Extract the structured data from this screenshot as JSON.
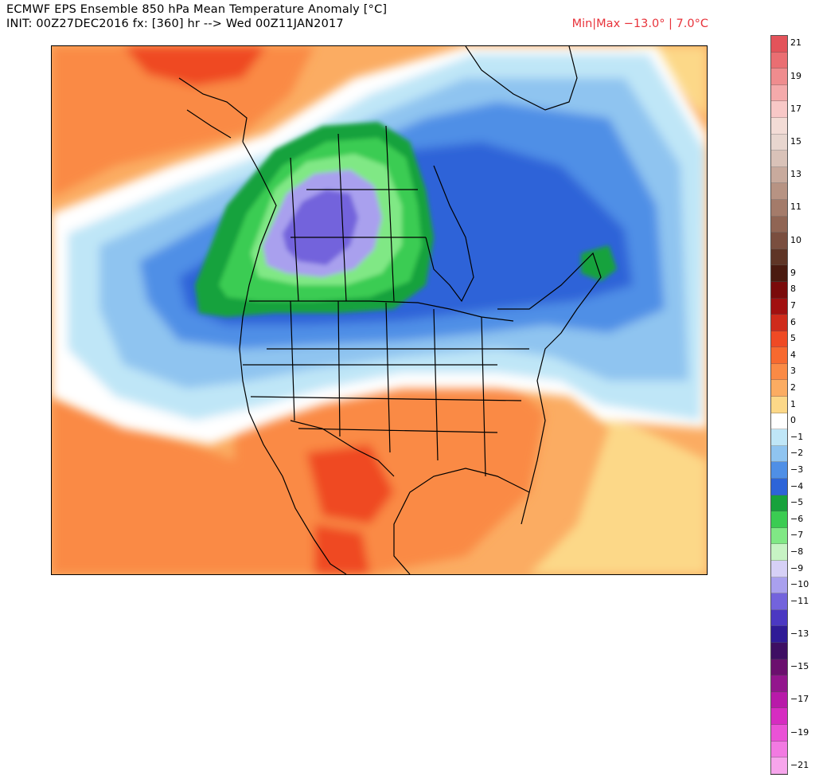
{
  "header": {
    "title": "ECMWF EPS Ensemble 850 hPa Mean Temperature Anomaly [°C]",
    "init": "INIT: 00Z27DEC2016 fx: [360] hr --> Wed 00Z11JAN2017",
    "minmax": "Min|Max −13.0° | 7.0°C"
  },
  "colorbar": {
    "entries": [
      {
        "label": "21",
        "color": "#e3535a"
      },
      {
        "label": "",
        "color": "#ea6e72"
      },
      {
        "label": "19",
        "color": "#ef8c8e"
      },
      {
        "label": "",
        "color": "#f4aaab"
      },
      {
        "label": "17",
        "color": "#f8c8c7"
      },
      {
        "label": "",
        "color": "#f3dcd6"
      },
      {
        "label": "15",
        "color": "#e8d6cf"
      },
      {
        "label": "",
        "color": "#d9c2b8"
      },
      {
        "label": "13",
        "color": "#c8aa9d"
      },
      {
        "label": "",
        "color": "#b79383"
      },
      {
        "label": "11",
        "color": "#a47b6a"
      },
      {
        "label": "",
        "color": "#906554"
      },
      {
        "label": "10",
        "color": "#7a4e3f"
      },
      {
        "label": "",
        "color": "#5f3526"
      },
      {
        "label": "9",
        "color": "#4a1a10"
      },
      {
        "label": "8",
        "color": "#7a0b0b"
      },
      {
        "label": "7",
        "color": "#a11010"
      },
      {
        "label": "6",
        "color": "#cf2b1b"
      },
      {
        "label": "5",
        "color": "#ef4a24"
      },
      {
        "label": "4",
        "color": "#f7692f"
      },
      {
        "label": "3",
        "color": "#fa8a45"
      },
      {
        "label": "2",
        "color": "#fbac62"
      },
      {
        "label": "1",
        "color": "#fcd888"
      },
      {
        "label": "0",
        "color": "#ffffff"
      },
      {
        "label": "−1",
        "color": "#bfe6f7"
      },
      {
        "label": "−2",
        "color": "#8fc4f0"
      },
      {
        "label": "−3",
        "color": "#4f8fe6"
      },
      {
        "label": "−4",
        "color": "#2d64d8"
      },
      {
        "label": "−5",
        "color": "#17a23c"
      },
      {
        "label": "−6",
        "color": "#3bcc52"
      },
      {
        "label": "−7",
        "color": "#80e885"
      },
      {
        "label": "−8",
        "color": "#c7f3c4"
      },
      {
        "label": "−9",
        "color": "#d6d0f6"
      },
      {
        "label": "−10",
        "color": "#a9a0ee"
      },
      {
        "label": "−11",
        "color": "#7363dc"
      },
      {
        "label": "",
        "color": "#4b38c2"
      },
      {
        "label": "−13",
        "color": "#2f1b96"
      },
      {
        "label": "",
        "color": "#3e0f63"
      },
      {
        "label": "−15",
        "color": "#6b0f6e"
      },
      {
        "label": "",
        "color": "#93168d"
      },
      {
        "label": "−17",
        "color": "#b81aa9"
      },
      {
        "label": "",
        "color": "#d62cc1"
      },
      {
        "label": "−19",
        "color": "#ea52d6"
      },
      {
        "label": "",
        "color": "#f27ae2"
      },
      {
        "label": "−21",
        "color": "#f7a5ec"
      }
    ]
  },
  "map": {
    "region": "North America",
    "colors": {
      "warm_dark": "#ef4a24",
      "warm": "#fa8a45",
      "warm_light": "#fbac62",
      "warm_pale": "#fcd888",
      "neutral": "#ffffff",
      "cool_pale": "#bfe6f7",
      "cool": "#8fc4f0",
      "cool_mid": "#4f8fe6",
      "cool_dark": "#2d64d8",
      "green_dark": "#17a23c",
      "green": "#3bcc52",
      "green_light": "#80e885",
      "lavender": "#a9a0ee",
      "purple": "#7363dc",
      "border_line": "#000000"
    }
  }
}
